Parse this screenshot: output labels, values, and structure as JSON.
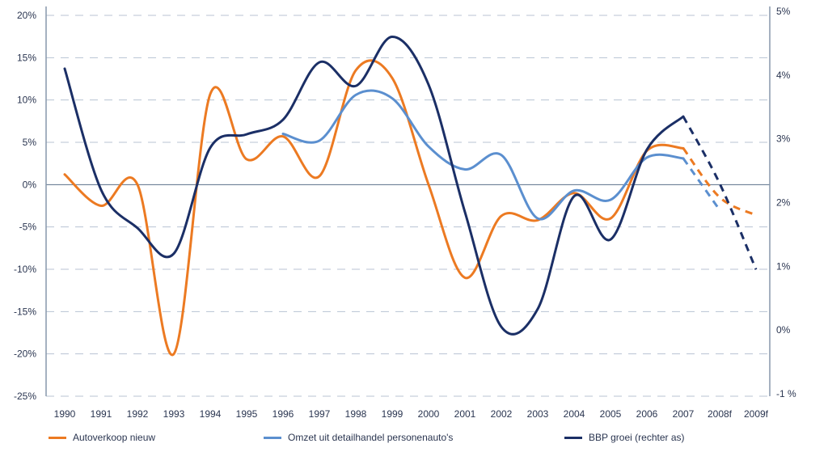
{
  "chart_data": {
    "type": "line",
    "categories": [
      "1990",
      "1991",
      "1992",
      "1993",
      "1994",
      "1995",
      "1996",
      "1997",
      "1998",
      "1999",
      "2000",
      "2001",
      "2002",
      "2003",
      "2004",
      "2005",
      "2006",
      "2007",
      "2008f",
      "2009f"
    ],
    "forecast_from": "2007",
    "y_left": {
      "ticks": [
        "20%",
        "15%",
        "10%",
        "5%",
        "0%",
        "-5%",
        "-10%",
        "-15%",
        "-20%",
        "-25%"
      ],
      "range": [
        -25,
        20
      ],
      "unit": "%"
    },
    "y_right": {
      "ticks": [
        "5%",
        "4%",
        "3%",
        "2%",
        "1%",
        "0%",
        "-1 %"
      ],
      "range": [
        -1,
        5
      ],
      "unit": "%"
    },
    "grid": "horizontal dashed",
    "legend_position": "bottom",
    "series": [
      {
        "name": "Autoverkoop nieuw",
        "axis": "left",
        "color": "#ec7a22",
        "values": [
          1.2,
          -2.5,
          0,
          -20,
          10.7,
          3,
          5.7,
          1,
          13.5,
          12.6,
          0,
          -11,
          -3.7,
          -4.2,
          -1,
          -4,
          4,
          4.3,
          -1.5,
          -3.6
        ]
      },
      {
        "name": "Omzet uit detailhandel personenauto's",
        "axis": "left",
        "color": "#5b8fcf",
        "values": [
          null,
          null,
          null,
          null,
          null,
          null,
          6,
          5.2,
          10.6,
          10.2,
          4.5,
          1.8,
          3.5,
          -4,
          -0.7,
          -1.8,
          3.2,
          3.1,
          -3,
          null
        ]
      },
      {
        "name": "BBP groei (rechter as)",
        "axis": "right",
        "color": "#1b2f66",
        "values": [
          4.1,
          2.2,
          1.6,
          1.2,
          2.86,
          3.07,
          3.3,
          4.2,
          3.83,
          4.6,
          3.85,
          1.85,
          0.05,
          0.33,
          2.1,
          1.42,
          2.83,
          3.35,
          2.3,
          0.95
        ]
      }
    ]
  }
}
